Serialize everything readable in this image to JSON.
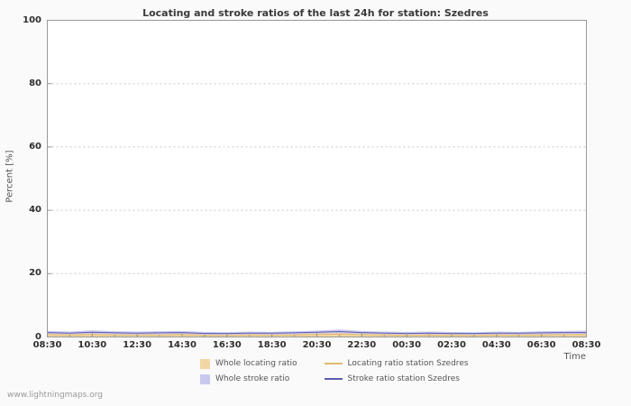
{
  "page": {
    "watermark": "www.lightningmaps.org"
  },
  "colors": {
    "page_bg": "#fafafa",
    "plot_bg": "#ffffff",
    "axis": "#999999",
    "grid": "#c8c8c8"
  },
  "chart_data": {
    "type": "area",
    "title": "Locating and stroke ratios of the last 24h for station: Szedres",
    "xlabel": "Time",
    "ylabel": "Percent  [%]",
    "ylim": [
      0,
      100
    ],
    "y_ticks": [
      0,
      20,
      40,
      60,
      80,
      100
    ],
    "x_tick_labels": [
      "08:30",
      "10:30",
      "12:30",
      "14:30",
      "16:30",
      "18:30",
      "20:30",
      "22:30",
      "00:30",
      "02:30",
      "04:30",
      "06:30",
      "08:30"
    ],
    "grid": "horizontal-dotted",
    "legend_position": "bottom",
    "x": [
      "08:30",
      "09:30",
      "10:30",
      "11:30",
      "12:30",
      "13:30",
      "14:30",
      "15:30",
      "16:30",
      "17:30",
      "18:30",
      "19:30",
      "20:30",
      "21:30",
      "22:30",
      "23:30",
      "00:30",
      "01:30",
      "02:30",
      "03:30",
      "04:30",
      "05:30",
      "06:30",
      "07:30",
      "08:30"
    ],
    "series": [
      {
        "name": "Whole locating ratio",
        "type": "area",
        "color": "#f2d7a4",
        "values": [
          1.0,
          0.9,
          1.1,
          0.9,
          0.8,
          0.9,
          1.0,
          0.8,
          0.7,
          0.9,
          0.8,
          0.9,
          1.1,
          1.2,
          1.0,
          0.9,
          0.8,
          0.9,
          0.8,
          0.7,
          0.9,
          0.8,
          0.9,
          1.0,
          1.0
        ]
      },
      {
        "name": "Whole stroke ratio",
        "type": "area",
        "color": "#c9c9f0",
        "values": [
          1.9,
          1.7,
          2.1,
          1.8,
          1.7,
          1.8,
          1.9,
          1.6,
          1.5,
          1.7,
          1.6,
          1.8,
          2.0,
          2.4,
          1.9,
          1.7,
          1.6,
          1.7,
          1.6,
          1.5,
          1.7,
          1.6,
          1.8,
          1.9,
          2.0
        ]
      },
      {
        "name": "Locating ratio station Szedres",
        "type": "line",
        "color": "#e2b870",
        "values": [
          0.7,
          0.6,
          0.8,
          0.6,
          0.6,
          0.6,
          0.7,
          0.5,
          0.5,
          0.6,
          0.6,
          0.6,
          0.8,
          0.9,
          0.7,
          0.6,
          0.5,
          0.6,
          0.5,
          0.5,
          0.6,
          0.6,
          0.6,
          0.7,
          0.7
        ]
      },
      {
        "name": "Stroke ratio station Szedres",
        "type": "line",
        "color": "#5c5cb0",
        "values": [
          1.4,
          1.2,
          1.5,
          1.3,
          1.2,
          1.3,
          1.4,
          1.1,
          1.1,
          1.2,
          1.2,
          1.3,
          1.5,
          1.7,
          1.4,
          1.2,
          1.1,
          1.2,
          1.1,
          1.1,
          1.2,
          1.2,
          1.3,
          1.4,
          1.4
        ]
      }
    ]
  }
}
